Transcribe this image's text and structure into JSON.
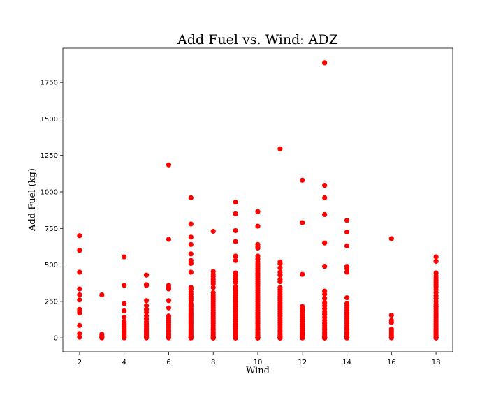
{
  "chart_data": {
    "type": "scatter",
    "title": "Add Fuel vs. Wind: ADZ",
    "xlabel": "Wind",
    "ylabel": "Add Fuel (kg)",
    "xlim": [
      1.25,
      18.75
    ],
    "ylim": [
      -95,
      1985
    ],
    "xticks": [
      2,
      4,
      6,
      8,
      10,
      12,
      14,
      16,
      18
    ],
    "yticks": [
      0,
      250,
      500,
      750,
      1000,
      1250,
      1500,
      1750
    ],
    "marker_color": "#ff0000",
    "grid": false,
    "series": [
      {
        "x": [
          2,
          2,
          2,
          2,
          2,
          2,
          2,
          2,
          2,
          2,
          2,
          2,
          3,
          3,
          3,
          3,
          3,
          3,
          4,
          4,
          4,
          4,
          4,
          4,
          4,
          4,
          4,
          4,
          4,
          4,
          4,
          4,
          4,
          4,
          4,
          5,
          5,
          5,
          5,
          5,
          5,
          5,
          5,
          5,
          5,
          5,
          5,
          5,
          5,
          5,
          5,
          5,
          5,
          5,
          5,
          5,
          6,
          6,
          6,
          6,
          6,
          6,
          6,
          6,
          6,
          6,
          6,
          6,
          6,
          6,
          6,
          6,
          6,
          6,
          6,
          6,
          7,
          7,
          7,
          7,
          7,
          7,
          7,
          7,
          7,
          7,
          7,
          7,
          7,
          7,
          7,
          7,
          7,
          7,
          7,
          7,
          7,
          7,
          7,
          7,
          7,
          7,
          7,
          7,
          7,
          7,
          7,
          7,
          7,
          7,
          7,
          7,
          7,
          7,
          7,
          7,
          7,
          7,
          7,
          7,
          7,
          7,
          7,
          7,
          7,
          7,
          8,
          8,
          8,
          8,
          8,
          8,
          8,
          8,
          8,
          8,
          8,
          8,
          8,
          8,
          8,
          8,
          8,
          8,
          8,
          8,
          8,
          8,
          8,
          8,
          8,
          8,
          8,
          8,
          8,
          8,
          8,
          8,
          8,
          8,
          8,
          8,
          8,
          8,
          8,
          8,
          8,
          8,
          8,
          8,
          8,
          9,
          9,
          9,
          9,
          9,
          9,
          9,
          9,
          9,
          9,
          9,
          9,
          9,
          9,
          9,
          9,
          9,
          9,
          9,
          9,
          9,
          9,
          9,
          9,
          9,
          9,
          9,
          9,
          9,
          9,
          9,
          9,
          9,
          9,
          9,
          9,
          9,
          9,
          9,
          9,
          9,
          9,
          9,
          9,
          9,
          9,
          9,
          9,
          9,
          9,
          9,
          9,
          10,
          10,
          10,
          10,
          10,
          10,
          10,
          10,
          10,
          10,
          10,
          10,
          10,
          10,
          10,
          10,
          10,
          10,
          10,
          10,
          10,
          10,
          10,
          10,
          10,
          10,
          10,
          10,
          10,
          10,
          10,
          10,
          10,
          10,
          10,
          10,
          10,
          10,
          10,
          10,
          10,
          10,
          10,
          10,
          10,
          10,
          10,
          10,
          10,
          10,
          10,
          10,
          10,
          10,
          10,
          10,
          10,
          10,
          10,
          10,
          10,
          10,
          10,
          10,
          10,
          10,
          10,
          10,
          11,
          11,
          11,
          11,
          11,
          11,
          11,
          11,
          11,
          11,
          11,
          11,
          11,
          11,
          11,
          11,
          11,
          11,
          11,
          11,
          11,
          11,
          11,
          11,
          11,
          11,
          11,
          11,
          11,
          11,
          11,
          11,
          11,
          11,
          11,
          11,
          11,
          11,
          11,
          11,
          11,
          11,
          11,
          12,
          12,
          12,
          12,
          12,
          12,
          12,
          12,
          12,
          12,
          12,
          12,
          12,
          12,
          12,
          12,
          12,
          12,
          12,
          12,
          12,
          12,
          12,
          12,
          13,
          13,
          13,
          13,
          13,
          13,
          13,
          13,
          13,
          13,
          13,
          13,
          13,
          13,
          13,
          13,
          13,
          13,
          13,
          13,
          13,
          13,
          13,
          13,
          13,
          13,
          13,
          13,
          13,
          13,
          13,
          13,
          13,
          13,
          13,
          13,
          14,
          14,
          14,
          14,
          14,
          14,
          14,
          14,
          14,
          14,
          14,
          14,
          14,
          14,
          14,
          14,
          14,
          14,
          14,
          14,
          14,
          14,
          14,
          14,
          14,
          14,
          14,
          14,
          14,
          14,
          14,
          14,
          14,
          14,
          16,
          16,
          16,
          16,
          16,
          16,
          16,
          16,
          16,
          16,
          18,
          18,
          18,
          18,
          18,
          18,
          18,
          18,
          18,
          18,
          18,
          18,
          18,
          18,
          18,
          18,
          18,
          18,
          18,
          18,
          18,
          18,
          18,
          18,
          18,
          18,
          18,
          18,
          18,
          18,
          18,
          18,
          18,
          18,
          18,
          18,
          18,
          18
        ],
        "y": [
          700,
          600,
          450,
          335,
          295,
          260,
          195,
          180,
          170,
          85,
          30,
          5,
          295,
          25,
          15,
          8,
          3,
          0,
          555,
          360,
          235,
          185,
          140,
          110,
          95,
          80,
          65,
          50,
          40,
          30,
          20,
          12,
          5,
          2,
          0,
          430,
          365,
          360,
          255,
          220,
          195,
          175,
          150,
          130,
          110,
          95,
          80,
          65,
          50,
          40,
          30,
          20,
          12,
          5,
          2,
          0,
          1185,
          675,
          360,
          345,
          335,
          255,
          205,
          150,
          135,
          120,
          105,
          90,
          75,
          60,
          45,
          30,
          20,
          10,
          5,
          0,
          960,
          780,
          690,
          640,
          575,
          530,
          510,
          450,
          345,
          335,
          315,
          300,
          285,
          270,
          255,
          235,
          225,
          215,
          200,
          190,
          180,
          170,
          160,
          150,
          140,
          130,
          120,
          110,
          100,
          90,
          80,
          70,
          60,
          50,
          40,
          30,
          20,
          15,
          10,
          5,
          0,
          0,
          0,
          0,
          0,
          0,
          0,
          0,
          0,
          0,
          730,
          455,
          435,
          420,
          400,
          385,
          370,
          345,
          310,
          295,
          280,
          265,
          250,
          235,
          220,
          205,
          190,
          175,
          160,
          145,
          130,
          115,
          100,
          85,
          70,
          55,
          40,
          30,
          20,
          10,
          5,
          0,
          0,
          0,
          0,
          0,
          0,
          0,
          0,
          0,
          0,
          0,
          0,
          0,
          0,
          930,
          850,
          735,
          660,
          560,
          530,
          445,
          425,
          410,
          395,
          380,
          350,
          335,
          320,
          305,
          290,
          275,
          260,
          245,
          230,
          215,
          200,
          185,
          170,
          155,
          140,
          125,
          110,
          95,
          80,
          65,
          50,
          40,
          30,
          20,
          10,
          5,
          0,
          0,
          0,
          0,
          0,
          0,
          0,
          0,
          0,
          0,
          0,
          0,
          0,
          0,
          0,
          865,
          765,
          640,
          625,
          615,
          560,
          540,
          520,
          505,
          490,
          475,
          460,
          445,
          430,
          415,
          400,
          385,
          370,
          355,
          340,
          325,
          310,
          295,
          280,
          265,
          250,
          235,
          220,
          205,
          190,
          175,
          160,
          145,
          130,
          115,
          100,
          85,
          70,
          55,
          40,
          30,
          20,
          10,
          5,
          0,
          0,
          0,
          0,
          0,
          0,
          0,
          0,
          0,
          0,
          0,
          0,
          0,
          0,
          0,
          0,
          0,
          0,
          0,
          0,
          0,
          0,
          0,
          0,
          1295,
          520,
          510,
          480,
          450,
          430,
          400,
          385,
          345,
          330,
          315,
          300,
          285,
          270,
          255,
          240,
          225,
          210,
          195,
          180,
          165,
          150,
          135,
          120,
          105,
          90,
          75,
          60,
          45,
          30,
          20,
          10,
          5,
          0,
          0,
          0,
          0,
          0,
          0,
          0,
          0,
          0,
          0,
          1080,
          790,
          435,
          215,
          200,
          185,
          170,
          155,
          140,
          125,
          110,
          95,
          80,
          65,
          50,
          35,
          25,
          15,
          8,
          3,
          0,
          0,
          0,
          0,
          1885,
          1045,
          960,
          845,
          650,
          490,
          320,
          300,
          270,
          240,
          220,
          200,
          180,
          160,
          140,
          120,
          100,
          85,
          70,
          55,
          40,
          30,
          20,
          10,
          5,
          0,
          0,
          0,
          0,
          0,
          0,
          0,
          0,
          0,
          0,
          0,
          805,
          725,
          630,
          490,
          475,
          450,
          275,
          235,
          220,
          205,
          190,
          175,
          160,
          145,
          130,
          115,
          100,
          85,
          70,
          55,
          40,
          30,
          20,
          10,
          5,
          0,
          0,
          0,
          0,
          0,
          0,
          0,
          0,
          0,
          680,
          155,
          120,
          105,
          60,
          45,
          30,
          15,
          5,
          0,
          555,
          525,
          445,
          425,
          410,
          395,
          380,
          365,
          350,
          330,
          310,
          290,
          270,
          250,
          230,
          215,
          200,
          185,
          170,
          155,
          140,
          125,
          110,
          95,
          80,
          65,
          50,
          40,
          30,
          20,
          10,
          5,
          0,
          0,
          0,
          0,
          0,
          0
        ]
      }
    ]
  }
}
